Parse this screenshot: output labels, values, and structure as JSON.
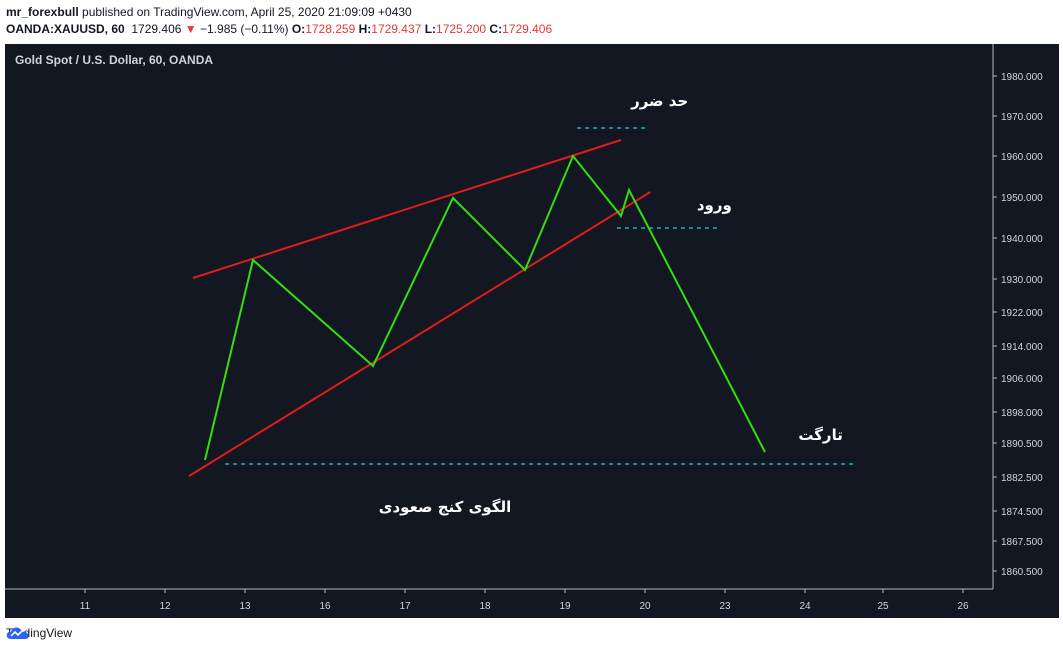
{
  "header": {
    "user": "mr_forexbull",
    "published": " published on TradingView.com, April 25, 2020 21:09:09 +0430",
    "symbol": "OANDA:XAUUSD, 60",
    "price": "1729.406",
    "change": "−1.985 (−0.11%)",
    "o_label": "O:",
    "o_val": "1728.259",
    "h_label": "H:",
    "h_val": "1729.437",
    "l_label": "L:",
    "l_val": "1725.200",
    "c_label": "C:",
    "c_val": "1729.406"
  },
  "footer": {
    "brand": "TradingView"
  },
  "colors": {
    "bg": "#131722",
    "zigzag": "#33dd11",
    "channel": "#e01b1b",
    "level": "#22c5d6"
  },
  "chart_data": {
    "type": "line",
    "title": "Gold Spot / U.S. Dollar, 60, OANDA",
    "y_ticks": [
      "1980.000",
      "1970.000",
      "1960.000",
      "1950.000",
      "1940.000",
      "1930.000",
      "1922.000",
      "1914.000",
      "1906.000",
      "1898.000",
      "1890.500",
      "1882.500",
      "1874.500",
      "1867.500",
      "1860.500"
    ],
    "x_ticks": [
      "11",
      "12",
      "13",
      "16",
      "17",
      "18",
      "19",
      "20",
      "23",
      "24",
      "25",
      "26"
    ],
    "zigzag": [
      {
        "x": 12.5,
        "y": 1884.0
      },
      {
        "x": 13.3,
        "y": 1934.0
      },
      {
        "x": 16.6,
        "y": 1907.5
      },
      {
        "x": 17.6,
        "y": 1949.5
      },
      {
        "x": 18.5,
        "y": 1931.5
      },
      {
        "x": 19.1,
        "y": 1960.0
      },
      {
        "x": 19.7,
        "y": 1945.0
      },
      {
        "x": 19.8,
        "y": 1951.5
      },
      {
        "x": 23.5,
        "y": 1886.0
      }
    ],
    "channel_upper": [
      {
        "x": 12.35,
        "y": 1929.5
      },
      {
        "x": 19.7,
        "y": 1964.0
      }
    ],
    "channel_lower": [
      {
        "x": 12.3,
        "y": 1880.0
      },
      {
        "x": 20.2,
        "y": 1951.0
      }
    ],
    "levels": [
      {
        "name": "stop",
        "y": 1967.0,
        "x_start": 19.15,
        "x_end": 20.15
      },
      {
        "name": "entry",
        "y": 1942.0,
        "x_start": 19.65,
        "x_end": 22.7
      },
      {
        "name": "target",
        "y": 1883.0,
        "x_start": 12.75,
        "x_end": 24.65
      }
    ],
    "annotations": [
      {
        "text": "حد ضرر",
        "x": 20.55,
        "y": 1972.5
      },
      {
        "text": "ورود",
        "x": 22.6,
        "y": 1946.5
      },
      {
        "text": "تارگت",
        "x": 24.2,
        "y": 1889.0
      },
      {
        "text": "الگوی کنج صعودی",
        "x": 17.5,
        "y": 1871.0
      }
    ]
  }
}
